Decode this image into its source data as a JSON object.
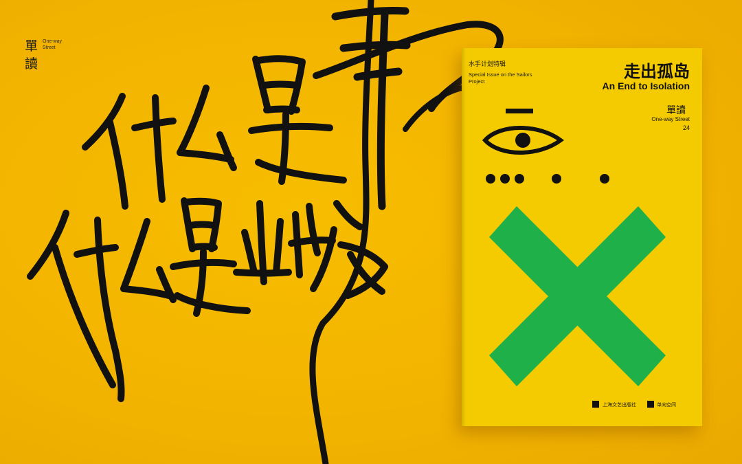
{
  "brand": {
    "name_cn": "單讀",
    "name_en": "One-way Street"
  },
  "poster": {
    "lettering": "什么是书 什么是出版"
  },
  "book": {
    "special_cn": "水手计划特辑",
    "special_en": "Special Issue on the Sailors Project",
    "title_cn": "走出孤岛",
    "title_en": "An End to Isolation",
    "series_cn": "單讀",
    "series_en": "One-way Street",
    "issue": "24",
    "publisher_1": "上海文艺出版社",
    "publisher_2": "单向空间"
  },
  "colors": {
    "background": "#f3b400",
    "cover": "#f4cb00",
    "ink": "#111111",
    "cross": "#1fb04a"
  },
  "icons": {
    "eye": "eye-icon",
    "dots": "morse-dots-icon",
    "cross": "green-cross-icon"
  }
}
